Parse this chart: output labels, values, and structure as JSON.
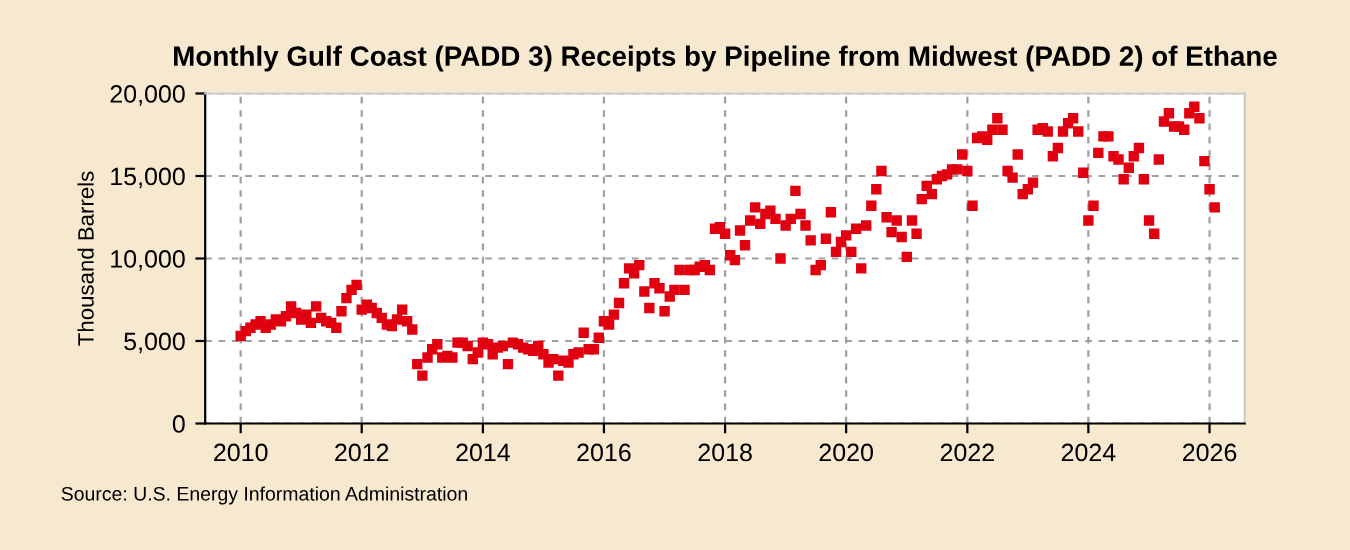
{
  "chart_data": {
    "type": "scatter",
    "title": "Monthly Gulf Coast (PADD 3) Receipts by Pipeline from Midwest (PADD 2) of Ethane",
    "ylabel": "Thousand Barrels",
    "annotations": [
      "Source: U.S. Energy Information Administration"
    ],
    "marker": "square",
    "grid": true,
    "xlim": [
      "2009-06",
      "2026-08"
    ],
    "xticks": [
      "2010",
      "2012",
      "2014",
      "2016",
      "2018",
      "2020",
      "2022",
      "2024",
      "2026"
    ],
    "ylim": [
      0,
      20000
    ],
    "yticks": [
      0,
      {
        "value": 5000,
        "label": "5,000"
      },
      {
        "value": 10000,
        "label": "10,000"
      },
      {
        "value": 15000,
        "label": "15,000"
      },
      {
        "value": 20000,
        "label": "20,000"
      }
    ],
    "series": [
      {
        "color": "#e00010",
        "x": [
          "2010-01",
          "2010-02",
          "2010-03",
          "2010-04",
          "2010-05",
          "2010-06",
          "2010-07",
          "2010-08",
          "2010-09",
          "2010-10",
          "2010-11",
          "2010-12",
          "2011-01",
          "2011-02",
          "2011-03",
          "2011-04",
          "2011-05",
          "2011-06",
          "2011-07",
          "2011-08",
          "2011-09",
          "2011-10",
          "2011-11",
          "2011-12",
          "2012-01",
          "2012-02",
          "2012-03",
          "2012-04",
          "2012-05",
          "2012-06",
          "2012-07",
          "2012-08",
          "2012-09",
          "2012-10",
          "2012-11",
          "2012-12",
          "2013-01",
          "2013-02",
          "2013-03",
          "2013-04",
          "2013-05",
          "2013-06",
          "2013-07",
          "2013-08",
          "2013-09",
          "2013-10",
          "2013-11",
          "2013-12",
          "2014-01",
          "2014-02",
          "2014-03",
          "2014-04",
          "2014-05",
          "2014-06",
          "2014-07",
          "2014-08",
          "2014-09",
          "2014-10",
          "2014-11",
          "2014-12",
          "2015-01",
          "2015-02",
          "2015-03",
          "2015-04",
          "2015-05",
          "2015-06",
          "2015-07",
          "2015-08",
          "2015-09",
          "2015-10",
          "2015-11",
          "2015-12",
          "2016-01",
          "2016-02",
          "2016-03",
          "2016-04",
          "2016-05",
          "2016-06",
          "2016-07",
          "2016-08",
          "2016-09",
          "2016-10",
          "2016-11",
          "2016-12",
          "2017-01",
          "2017-02",
          "2017-03",
          "2017-04",
          "2017-05",
          "2017-06",
          "2017-07",
          "2017-08",
          "2017-09",
          "2017-10",
          "2017-11",
          "2017-12",
          "2018-01",
          "2018-02",
          "2018-03",
          "2018-04",
          "2018-05",
          "2018-06",
          "2018-07",
          "2018-08",
          "2018-09",
          "2018-10",
          "2018-11",
          "2018-12",
          "2019-01",
          "2019-02",
          "2019-03",
          "2019-04",
          "2019-05",
          "2019-06",
          "2019-07",
          "2019-08",
          "2019-09",
          "2019-10",
          "2019-11",
          "2019-12",
          "2020-01",
          "2020-02",
          "2020-03",
          "2020-04",
          "2020-05",
          "2020-06",
          "2020-07",
          "2020-08",
          "2020-09",
          "2020-10",
          "2020-11",
          "2020-12",
          "2021-01",
          "2021-02",
          "2021-03",
          "2021-04",
          "2021-05",
          "2021-06",
          "2021-07",
          "2021-08",
          "2021-09",
          "2021-10",
          "2021-11",
          "2021-12",
          "2022-01",
          "2022-02",
          "2022-03",
          "2022-04",
          "2022-05",
          "2022-06",
          "2022-07",
          "2022-08",
          "2022-09",
          "2022-10",
          "2022-11",
          "2022-12",
          "2023-01",
          "2023-02",
          "2023-03",
          "2023-04",
          "2023-05",
          "2023-06",
          "2023-07",
          "2023-08",
          "2023-09",
          "2023-10",
          "2023-11",
          "2023-12",
          "2024-01",
          "2024-02",
          "2024-03",
          "2024-04",
          "2024-05",
          "2024-06",
          "2024-07",
          "2024-08",
          "2024-09",
          "2024-10",
          "2024-11",
          "2024-12",
          "2025-01",
          "2025-02",
          "2025-03",
          "2025-04",
          "2025-05",
          "2025-06",
          "2025-07",
          "2025-08",
          "2025-09",
          "2025-10",
          "2025-11",
          "2025-12",
          "2026-01",
          "2026-02"
        ],
        "values": [
          5300,
          5600,
          5800,
          6000,
          6200,
          5800,
          6000,
          6300,
          6200,
          6500,
          7100,
          6700,
          6300,
          6600,
          6100,
          7100,
          6400,
          6200,
          6100,
          5800,
          6800,
          7600,
          8100,
          8400,
          6900,
          7200,
          7000,
          6700,
          6400,
          6000,
          5900,
          6300,
          6900,
          6200,
          5700,
          3600,
          2900,
          4000,
          4500,
          4800,
          4000,
          4100,
          4000,
          4900,
          4900,
          4700,
          3900,
          4300,
          4900,
          4800,
          4200,
          4600,
          4700,
          3600,
          4900,
          4800,
          4600,
          4500,
          4400,
          4700,
          4200,
          3700,
          3900,
          2900,
          3800,
          3700,
          4200,
          4300,
          5500,
          4500,
          4500,
          5200,
          6200,
          6000,
          6600,
          7300,
          8500,
          9400,
          9100,
          9600,
          8000,
          7000,
          8500,
          8200,
          6800,
          7700,
          8100,
          9300,
          8100,
          9300,
          9300,
          9500,
          9600,
          9300,
          11800,
          11900,
          11500,
          10200,
          9900,
          11700,
          10800,
          12300,
          13100,
          12100,
          12700,
          12900,
          12400,
          10000,
          12000,
          12400,
          14100,
          12700,
          12000,
          11100,
          9300,
          9600,
          11200,
          12800,
          10400,
          11000,
          11400,
          10400,
          11800,
          9400,
          12000,
          13200,
          14200,
          15300,
          12500,
          11600,
          12300,
          11300,
          10100,
          12300,
          11500,
          13600,
          14400,
          13900,
          14800,
          15000,
          15100,
          15400,
          15400,
          16300,
          15300,
          13200,
          17300,
          17400,
          17200,
          17800,
          18500,
          17800,
          15300,
          14900,
          16300,
          13900,
          14200,
          14600,
          17800,
          17900,
          17700,
          16200,
          16700,
          17700,
          18200,
          18500,
          17700,
          15200,
          12300,
          13200,
          16400,
          17400,
          17400,
          16200,
          16000,
          14800,
          15500,
          16200,
          16700,
          14800,
          12300,
          11500,
          16000,
          18300,
          18800,
          18000,
          18000,
          17800,
          18800,
          19200,
          18500,
          15900,
          14200,
          13100
        ]
      }
    ]
  }
}
